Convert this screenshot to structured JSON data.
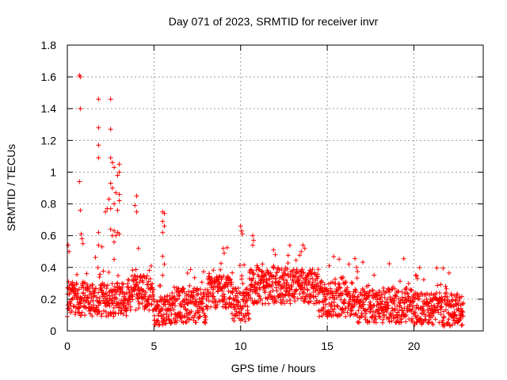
{
  "chart_data": {
    "type": "scatter",
    "title": "Day 071 of 2023, SRMTID for receiver invr",
    "xlabel": "GPS time / hours",
    "ylabel": "SRMTID / TECUs",
    "xlim": [
      0,
      24
    ],
    "ylim": [
      0,
      1.8
    ],
    "xticks": [
      0,
      5,
      10,
      15,
      20
    ],
    "yticks": [
      0,
      0.2,
      0.4,
      0.6,
      0.8,
      1,
      1.2,
      1.4,
      1.6,
      1.8
    ],
    "xtick_labels": [
      "0",
      "5",
      "10",
      "15",
      "20"
    ],
    "ytick_labels": [
      "0",
      "0.2",
      "0.4",
      "0.6",
      "0.8",
      "1",
      "1.2",
      "1.4",
      "1.6",
      "1.8"
    ],
    "grid": true,
    "marker": "+",
    "color": "#ff0000",
    "outliers": [
      {
        "x": 0.7,
        "y": 1.61
      },
      {
        "x": 0.75,
        "y": 1.6
      },
      {
        "x": 0.75,
        "y": 1.4
      },
      {
        "x": 0.7,
        "y": 0.94
      },
      {
        "x": 0.75,
        "y": 0.76
      },
      {
        "x": 1.8,
        "y": 1.46
      },
      {
        "x": 1.8,
        "y": 1.28
      },
      {
        "x": 1.8,
        "y": 1.17
      },
      {
        "x": 1.8,
        "y": 1.09
      },
      {
        "x": 2.5,
        "y": 1.46
      },
      {
        "x": 2.5,
        "y": 1.27
      },
      {
        "x": 2.5,
        "y": 1.09
      },
      {
        "x": 2.6,
        "y": 1.06
      },
      {
        "x": 2.7,
        "y": 1.03
      },
      {
        "x": 3.0,
        "y": 1.05
      },
      {
        "x": 3.0,
        "y": 1.0
      },
      {
        "x": 2.9,
        "y": 0.98
      },
      {
        "x": 2.5,
        "y": 0.93
      },
      {
        "x": 2.6,
        "y": 0.9
      },
      {
        "x": 2.8,
        "y": 0.87
      },
      {
        "x": 3.0,
        "y": 0.86
      },
      {
        "x": 3.0,
        "y": 0.82
      },
      {
        "x": 2.4,
        "y": 0.83
      },
      {
        "x": 2.7,
        "y": 0.8
      },
      {
        "x": 2.3,
        "y": 0.77
      },
      {
        "x": 2.5,
        "y": 0.77
      },
      {
        "x": 2.9,
        "y": 0.76
      },
      {
        "x": 2.2,
        "y": 0.75
      },
      {
        "x": 2.5,
        "y": 0.64
      },
      {
        "x": 2.7,
        "y": 0.63
      },
      {
        "x": 2.9,
        "y": 0.62
      },
      {
        "x": 3.0,
        "y": 0.61
      },
      {
        "x": 2.6,
        "y": 0.6
      },
      {
        "x": 2.8,
        "y": 0.6
      },
      {
        "x": 2.7,
        "y": 0.56
      },
      {
        "x": 1.8,
        "y": 0.62
      },
      {
        "x": 1.8,
        "y": 0.54
      },
      {
        "x": 2.0,
        "y": 0.53
      },
      {
        "x": 0.8,
        "y": 0.61
      },
      {
        "x": 0.85,
        "y": 0.58
      },
      {
        "x": 0.9,
        "y": 0.55
      },
      {
        "x": 0.05,
        "y": 0.54
      },
      {
        "x": 0.1,
        "y": 0.5
      },
      {
        "x": 4.0,
        "y": 0.85
      },
      {
        "x": 3.9,
        "y": 0.79
      },
      {
        "x": 4.0,
        "y": 0.75
      },
      {
        "x": 4.1,
        "y": 0.52
      },
      {
        "x": 5.5,
        "y": 0.75
      },
      {
        "x": 5.6,
        "y": 0.74
      },
      {
        "x": 5.5,
        "y": 0.69
      },
      {
        "x": 5.6,
        "y": 0.66
      },
      {
        "x": 5.5,
        "y": 0.62
      },
      {
        "x": 5.5,
        "y": 0.47
      },
      {
        "x": 5.6,
        "y": 0.42
      },
      {
        "x": 5.5,
        "y": 0.35
      },
      {
        "x": 10.0,
        "y": 0.66
      },
      {
        "x": 10.05,
        "y": 0.63
      },
      {
        "x": 10.1,
        "y": 0.61
      },
      {
        "x": 10.7,
        "y": 0.6
      },
      {
        "x": 10.75,
        "y": 0.57
      },
      {
        "x": 10.7,
        "y": 0.54
      },
      {
        "x": 9.0,
        "y": 0.52
      },
      {
        "x": 9.05,
        "y": 0.49
      },
      {
        "x": 13.6,
        "y": 0.54
      },
      {
        "x": 13.7,
        "y": 0.52
      },
      {
        "x": 13.5,
        "y": 0.5
      },
      {
        "x": 11.9,
        "y": 0.51
      },
      {
        "x": 12.0,
        "y": 0.48
      },
      {
        "x": 20.1,
        "y": 0.35
      },
      {
        "x": 20.2,
        "y": 0.33
      }
    ]
  }
}
